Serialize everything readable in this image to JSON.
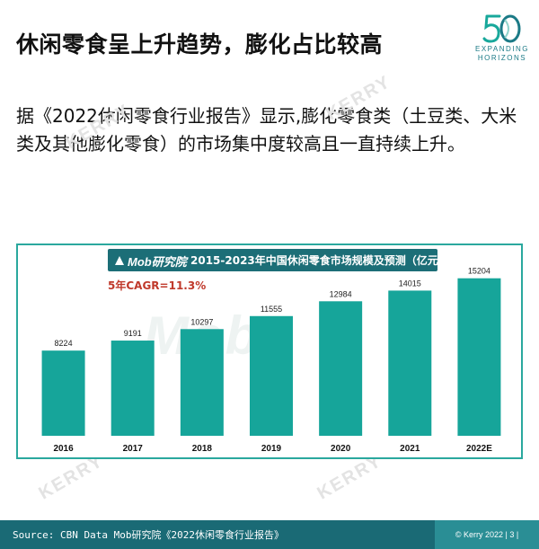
{
  "page": {
    "title": "休闲零食呈上升趋势，膨化占比较高",
    "body_text": "据《2022休闲零食行业报告》显示,膨化零食类（土豆类、大米类及其他膨化零食）的市场集中度较高且一直持续上升。"
  },
  "logo": {
    "number": "50",
    "line1": "EXPANDING",
    "line2": "HORIZONS"
  },
  "watermark": {
    "text": "KERRY"
  },
  "chart_header": {
    "brand": "Mob研究院"
  },
  "chart_data": {
    "type": "bar",
    "title": "2015-2023年中国休闲零食市场规模及预测（亿元）",
    "annotation": "5年CAGR=11.3%",
    "categories": [
      "2016",
      "2017",
      "2018",
      "2019",
      "2020",
      "2021",
      "2022E"
    ],
    "values": [
      8224,
      9191,
      10297,
      11555,
      12984,
      14015,
      15204
    ],
    "ylim": [
      0,
      17000
    ],
    "xlabel": "",
    "ylabel": "",
    "grid": false,
    "legend": "none",
    "bar_color": "#16a59a"
  },
  "footer": {
    "source": "Source: CBN Data Mob研究院《2022休闲零食行业报告》",
    "copyright": "© Kerry 2022 | 3 |"
  }
}
